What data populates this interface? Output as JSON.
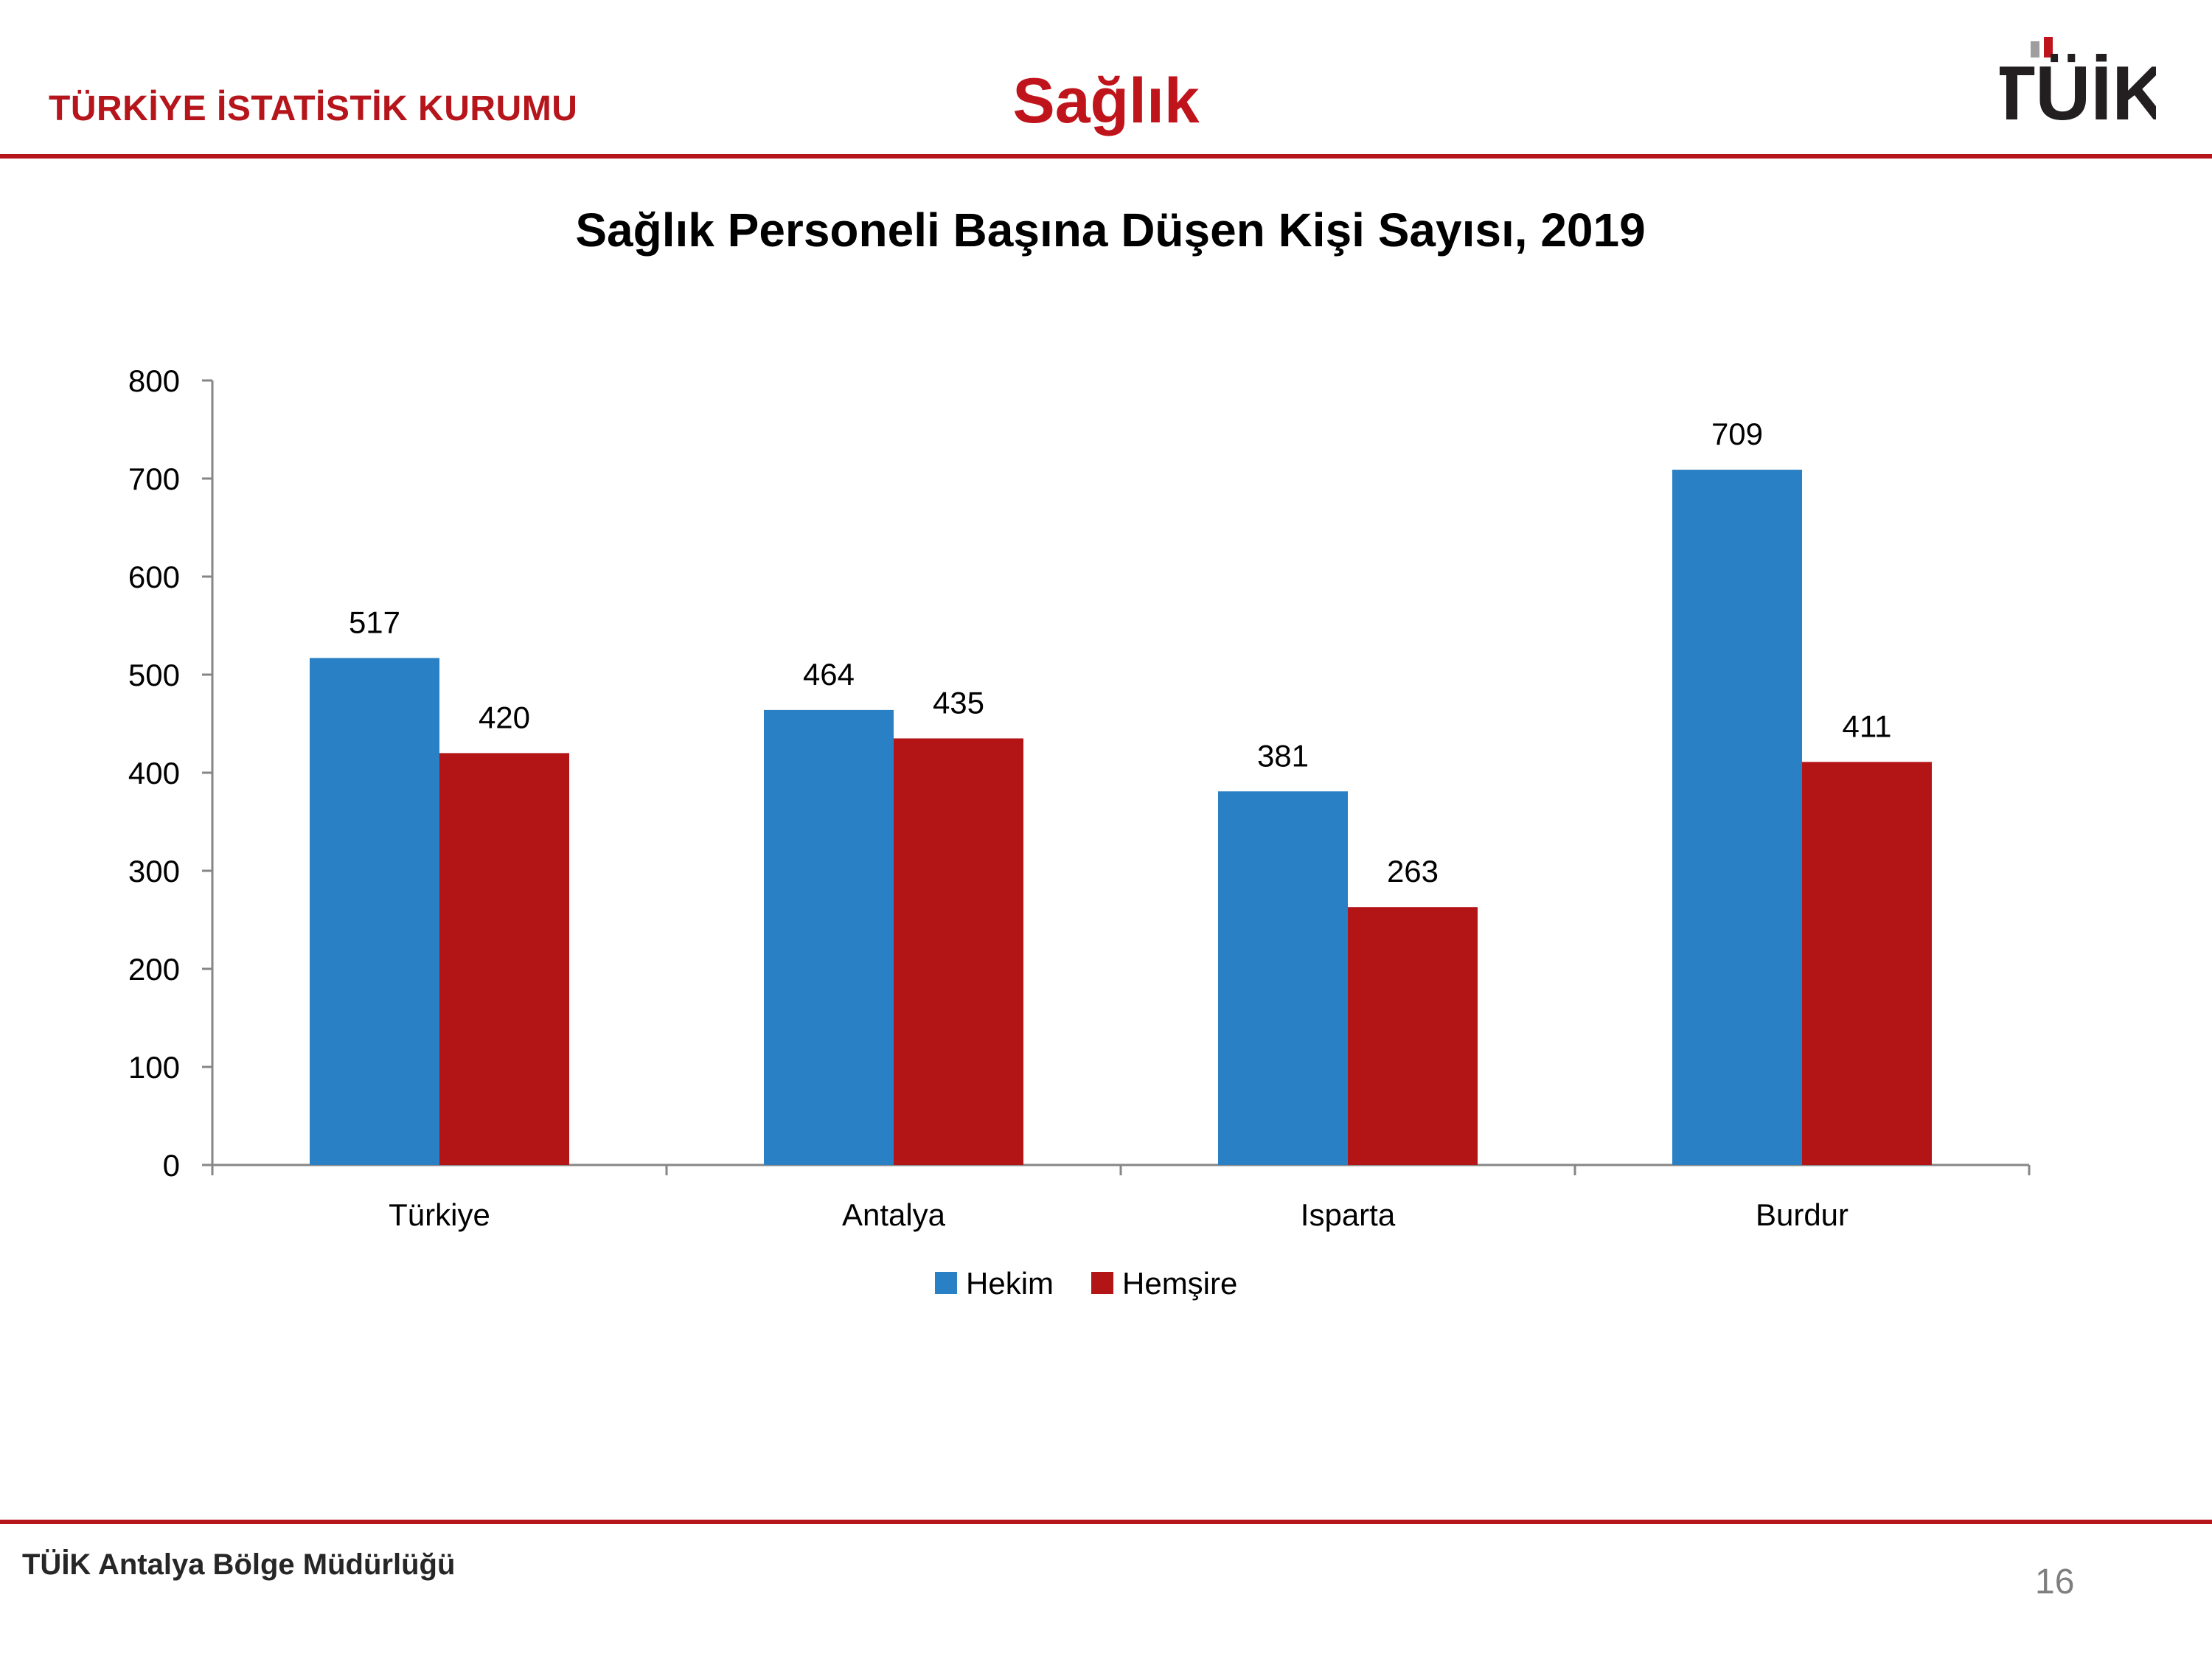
{
  "header": {
    "org_name": "TÜRKİYE İSTATİSTİK KURUMU",
    "section_title": "Sağlık",
    "logo_text": "TÜİK"
  },
  "footer": {
    "office_name": "TÜİK Antalya Bölge Müdürlüğü",
    "page_number": "16"
  },
  "colors": {
    "brand_red": "#b5151b",
    "hekim": "#2a80c5",
    "hemsire": "#b31517"
  },
  "chart_data": {
    "type": "bar",
    "title": "Sağlık Personeli Başına Düşen Kişi Sayısı, 2019",
    "xlabel": "",
    "ylabel": "",
    "categories": [
      "Türkiye",
      "Antalya",
      "Isparta",
      "Burdur"
    ],
    "series": [
      {
        "name": "Hekim",
        "values": [
          517,
          464,
          381,
          709
        ],
        "color": "#2a80c5"
      },
      {
        "name": "Hemşire",
        "values": [
          420,
          435,
          263,
          411
        ],
        "color": "#b31517"
      }
    ],
    "ylim": [
      0,
      800
    ],
    "yticks": [
      0,
      100,
      200,
      300,
      400,
      500,
      600,
      700,
      800
    ],
    "grid": false,
    "legend": "bottom",
    "data_labels": true
  }
}
